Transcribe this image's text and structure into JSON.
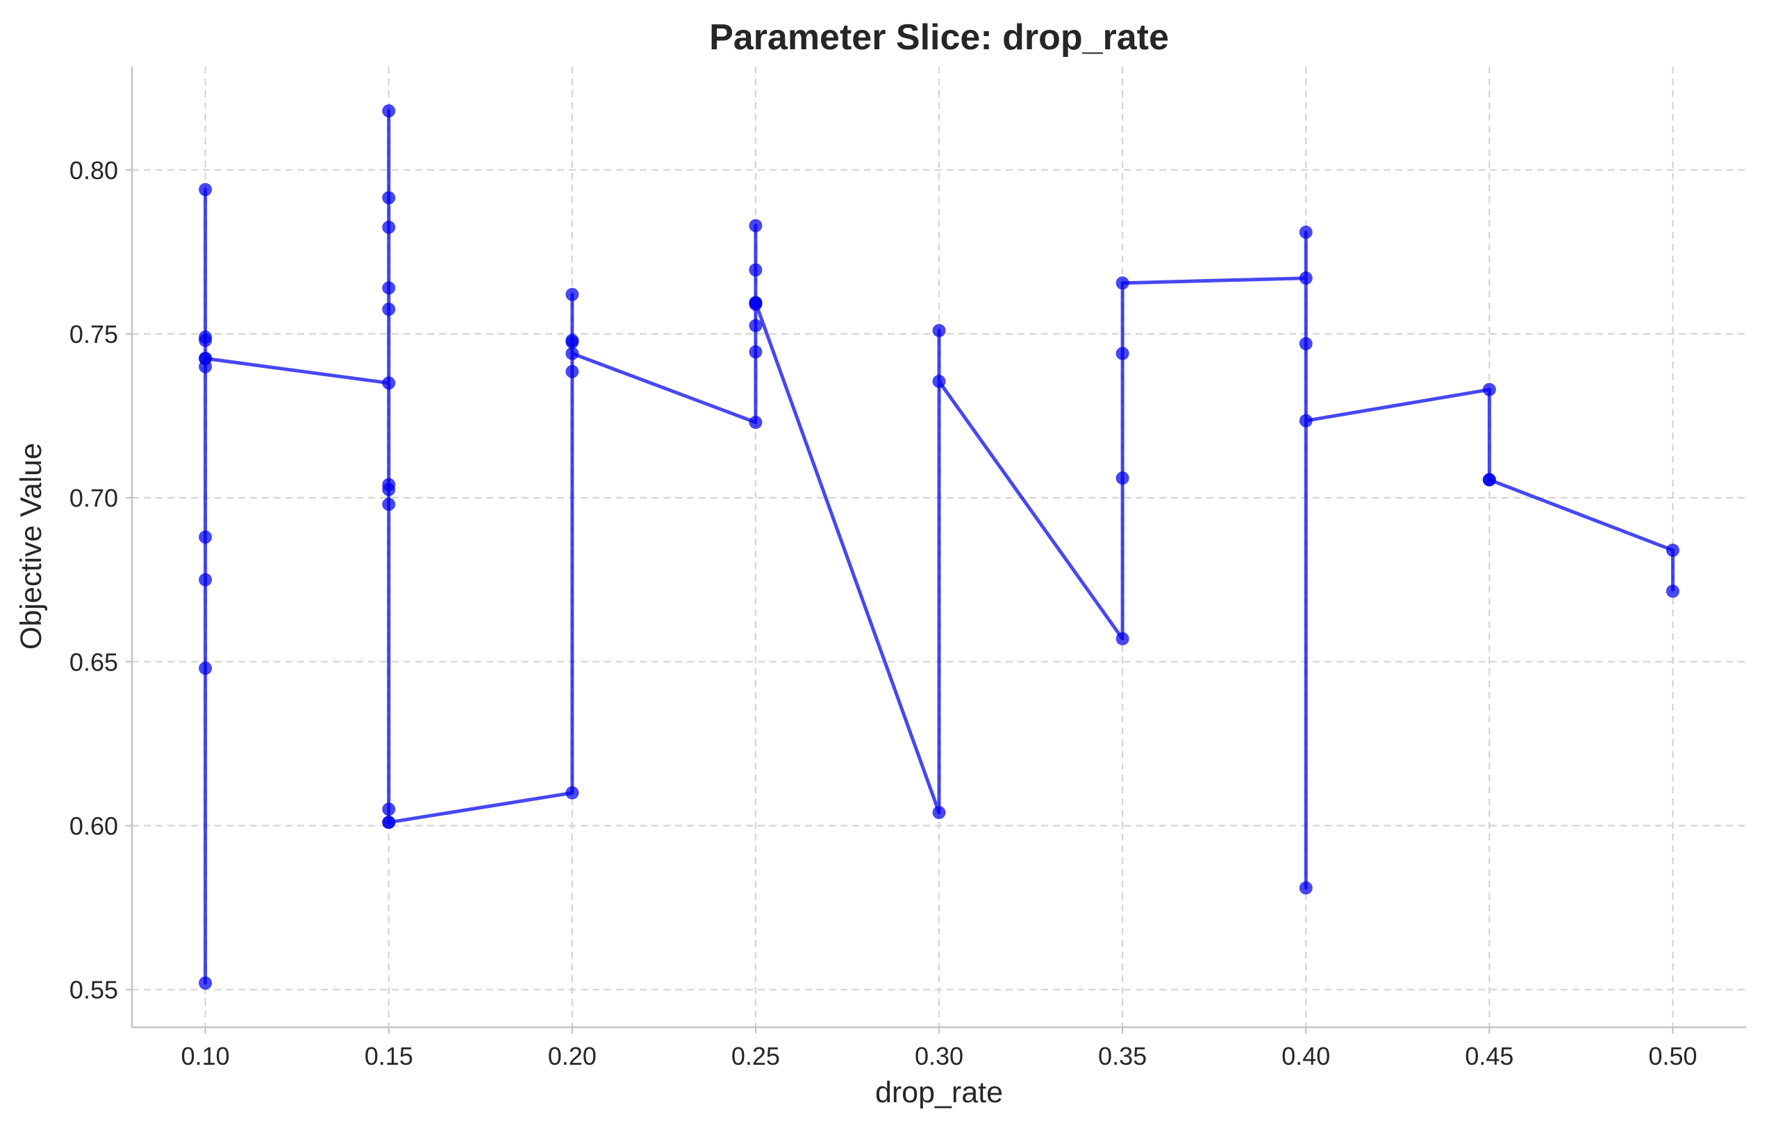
{
  "chart_data": {
    "type": "line",
    "title": "Parameter Slice: drop_rate",
    "xlabel": "drop_rate",
    "ylabel": "Objective Value",
    "xlim": [
      0.08,
      0.52
    ],
    "ylim": [
      0.5385,
      0.8315
    ],
    "x_ticks": [
      "0.10",
      "0.15",
      "0.20",
      "0.25",
      "0.30",
      "0.35",
      "0.40",
      "0.45",
      "0.50"
    ],
    "y_ticks": [
      "0.55",
      "0.60",
      "0.65",
      "0.70",
      "0.75",
      "0.80"
    ],
    "grid": true,
    "color": "#0000ee",
    "x": [
      0.1,
      0.1,
      0.1,
      0.1,
      0.1,
      0.1,
      0.1,
      0.1,
      0.1,
      0.1,
      0.15,
      0.15,
      0.15,
      0.15,
      0.15,
      0.15,
      0.15,
      0.15,
      0.15,
      0.15,
      0.15,
      0.15,
      0.2,
      0.2,
      0.2,
      0.2,
      0.2,
      0.2,
      0.25,
      0.25,
      0.25,
      0.25,
      0.25,
      0.25,
      0.25,
      0.25,
      0.3,
      0.3,
      0.3,
      0.35,
      0.35,
      0.35,
      0.35,
      0.4,
      0.4,
      0.4,
      0.4,
      0.4,
      0.45,
      0.45,
      0.45,
      0.5,
      0.5
    ],
    "y": [
      0.7425,
      0.74,
      0.748,
      0.749,
      0.794,
      0.688,
      0.675,
      0.648,
      0.552,
      0.7425,
      0.735,
      0.818,
      0.7915,
      0.7825,
      0.764,
      0.7575,
      0.704,
      0.7025,
      0.698,
      0.605,
      0.601,
      0.601,
      0.61,
      0.762,
      0.7475,
      0.748,
      0.7385,
      0.744,
      0.723,
      0.7445,
      0.7525,
      0.759,
      0.7595,
      0.7695,
      0.783,
      0.7595,
      0.604,
      0.751,
      0.7355,
      0.657,
      0.706,
      0.744,
      0.7655,
      0.767,
      0.781,
      0.747,
      0.581,
      0.7235,
      0.733,
      0.7055,
      0.7055,
      0.684,
      0.6715
    ]
  }
}
